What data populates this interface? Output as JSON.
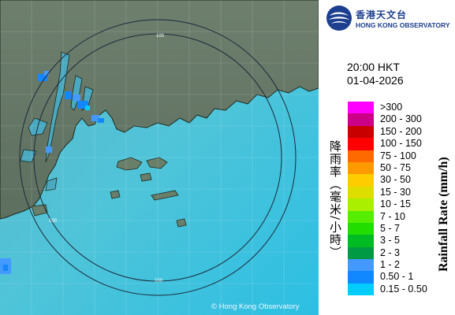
{
  "header": {
    "logo_cn": "香港天文台",
    "logo_en": "HONG KONG OBSERVATORY"
  },
  "timestamp": {
    "time": "20:00 HKT",
    "date": "01-04-2026"
  },
  "legend": {
    "unit_cn": "降雨率（毫米/小時）",
    "unit_en": "Rainfall Rate (mm/h)",
    "items": [
      {
        "label": ">300",
        "color": "#ff00ff"
      },
      {
        "label": "200 - 300",
        "color": "#cc0088"
      },
      {
        "label": "150 - 200",
        "color": "#c80000"
      },
      {
        "label": "100 - 150",
        "color": "#ff0000"
      },
      {
        "label": "75 - 100",
        "color": "#ff6a00"
      },
      {
        "label": "50 - 75",
        "color": "#ff9900"
      },
      {
        "label": "30 - 50",
        "color": "#ffcc00"
      },
      {
        "label": "15 - 30",
        "color": "#dddd00"
      },
      {
        "label": "10 - 15",
        "color": "#aaee00"
      },
      {
        "label": "7 - 10",
        "color": "#55ee00"
      },
      {
        "label": "5 - 7",
        "color": "#22dd00"
      },
      {
        "label": "3 - 5",
        "color": "#00bb22"
      },
      {
        "label": "2 - 3",
        "color": "#009944"
      },
      {
        "label": "1 - 2",
        "color": "#4499ff"
      },
      {
        "label": "0.50 - 1",
        "color": "#1188ff"
      },
      {
        "label": "0.15 - 0.50",
        "color": "#00ccff"
      }
    ]
  },
  "map": {
    "range_rings": [
      {
        "label": "100"
      },
      {
        "label": "100"
      },
      {
        "label": "100"
      }
    ],
    "copyright": "© Hong Kong Observatory"
  }
}
